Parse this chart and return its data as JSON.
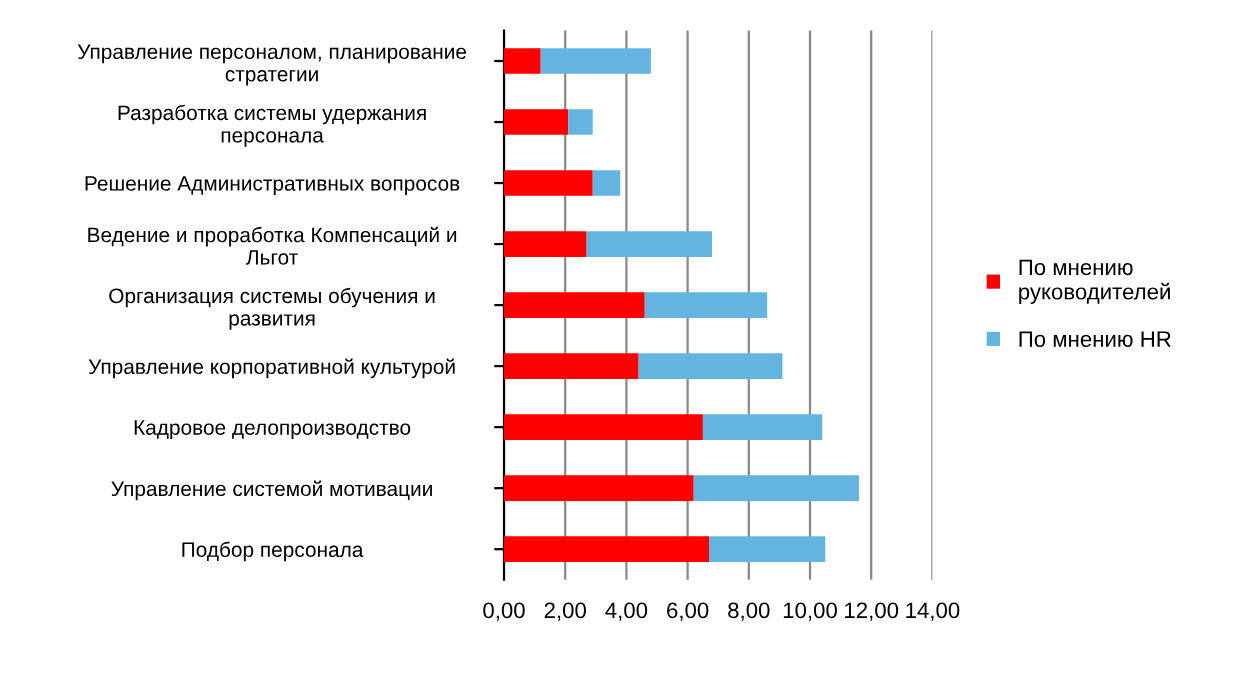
{
  "chart_data": {
    "type": "bar",
    "orientation": "horizontal",
    "stacked": true,
    "categories": [
      "Управление персоналом, планирование\nстратегии",
      "Разработка системы удержания\nперсонала",
      "Решение Административных вопросов",
      "Ведение и проработка Компенсаций и\nЛьгот",
      "Организация системы обучения и\nразвития",
      "Управление корпоративной культурой",
      "Кадровое делопроизводство",
      "Управление системой мотивации",
      "Подбор персонала"
    ],
    "series": [
      {
        "name": "По мнению\nруководителей",
        "color": "#ff0000",
        "values": [
          1.2,
          2.1,
          2.9,
          2.7,
          4.6,
          4.4,
          6.5,
          6.2,
          6.7
        ]
      },
      {
        "name": "По мнению HR",
        "color": "#63b5e0",
        "values": [
          3.6,
          0.8,
          0.9,
          4.1,
          4.0,
          4.7,
          3.9,
          5.4,
          3.8
        ]
      }
    ],
    "xlim": [
      0,
      14
    ],
    "xticks": [
      {
        "value": 0,
        "label": "0,00"
      },
      {
        "value": 2,
        "label": "2,00"
      },
      {
        "value": 4,
        "label": "4,00"
      },
      {
        "value": 6,
        "label": "6,00"
      },
      {
        "value": 8,
        "label": "8,00"
      },
      {
        "value": 10,
        "label": "10,00"
      },
      {
        "value": 12,
        "label": "12,00"
      },
      {
        "value": 14,
        "label": "14,00"
      }
    ],
    "grid": "x",
    "legend": "right"
  }
}
